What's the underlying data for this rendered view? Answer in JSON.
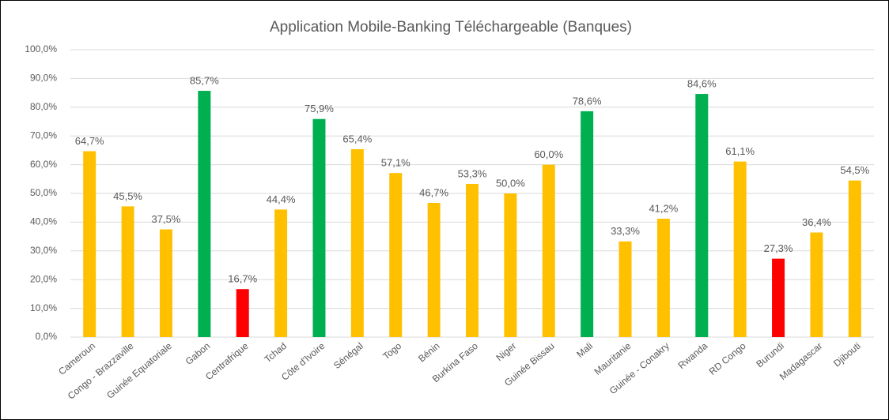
{
  "chart_data": {
    "type": "bar",
    "title": "Application Mobile-Banking Téléchargeable (Banques)",
    "categories": [
      "Cameroun",
      "Congo - Brazzaville",
      "Guinée Equatoriale",
      "Gabon",
      "Centrafrique",
      "Tchad",
      "Côte d'Ivoire",
      "Sénégal",
      "Togo",
      "Bénin",
      "Burkina Faso",
      "Niger",
      "Guinée Bissau",
      "Mali",
      "Mauritanie",
      "Guinée - Conakry",
      "Rwanda",
      "RD Congo",
      "Burundi",
      "Madagascar",
      "Djibouti"
    ],
    "values": [
      64.7,
      45.5,
      37.5,
      85.7,
      16.7,
      44.4,
      75.9,
      65.4,
      57.1,
      46.7,
      53.3,
      50.0,
      60.0,
      78.6,
      33.3,
      41.2,
      84.6,
      61.1,
      27.3,
      36.4,
      54.5
    ],
    "value_labels": [
      "64,7%",
      "45,5%",
      "37,5%",
      "85,7%",
      "16,7%",
      "44,4%",
      "75,9%",
      "65,4%",
      "57,1%",
      "46,7%",
      "53,3%",
      "50,0%",
      "60,0%",
      "78,6%",
      "33,3%",
      "41,2%",
      "84,6%",
      "61,1%",
      "27,3%",
      "36,4%",
      "54,5%"
    ],
    "colors": [
      "#FFC000",
      "#FFC000",
      "#FFC000",
      "#00B050",
      "#FF0000",
      "#FFC000",
      "#00B050",
      "#FFC000",
      "#FFC000",
      "#FFC000",
      "#FFC000",
      "#FFC000",
      "#FFC000",
      "#00B050",
      "#FFC000",
      "#FFC000",
      "#00B050",
      "#FFC000",
      "#FF0000",
      "#FFC000",
      "#FFC000"
    ],
    "ylim": [
      0,
      100
    ],
    "yticks": [
      {
        "value": 0,
        "label": "0,0%"
      },
      {
        "value": 10,
        "label": "10,0%"
      },
      {
        "value": 20,
        "label": "20,0%"
      },
      {
        "value": 30,
        "label": "30,0%"
      },
      {
        "value": 40,
        "label": "40,0%"
      },
      {
        "value": 50,
        "label": "50,0%"
      },
      {
        "value": 60,
        "label": "60,0%"
      },
      {
        "value": 70,
        "label": "70,0%"
      },
      {
        "value": 80,
        "label": "80,0%"
      },
      {
        "value": 90,
        "label": "90,0%"
      },
      {
        "value": 100,
        "label": "100,0%"
      }
    ],
    "grid": true
  }
}
